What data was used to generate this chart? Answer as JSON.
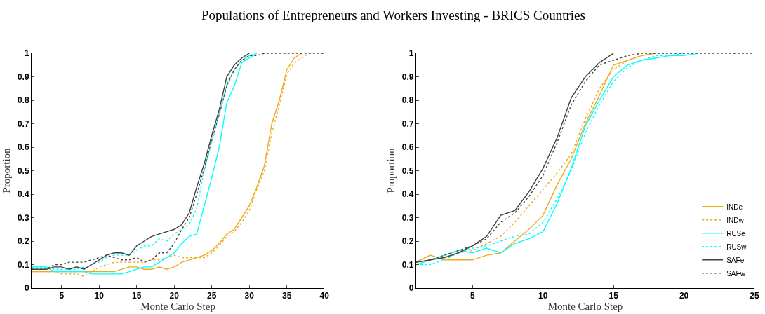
{
  "chart_data": [
    {
      "type": "line",
      "title": "Populations of Entrepreneurs and Workers Investing - BRICS Countries",
      "xlabel": "Monte Carlo Step",
      "ylabel": "Proportion",
      "x": [
        1,
        2,
        3,
        4,
        5,
        6,
        7,
        8,
        9,
        10,
        11,
        12,
        13,
        14,
        15,
        16,
        17,
        18,
        19,
        20,
        21,
        22,
        23,
        24,
        25,
        26,
        27,
        28,
        29,
        30,
        31,
        32,
        33,
        34,
        35,
        36,
        37,
        38,
        39,
        40
      ],
      "xlim": [
        1,
        40
      ],
      "xticks": [
        5,
        10,
        15,
        20,
        25,
        30,
        35,
        40
      ],
      "ylim": [
        0,
        1
      ],
      "yticks": [
        0,
        {
          "value": 0.1,
          "label": "0.1"
        },
        {
          "value": 0.2,
          "label": "0.2"
        },
        {
          "value": 0.3,
          "label": "0.3"
        },
        {
          "value": 0.4,
          "label": "0.4"
        },
        {
          "value": 0.5,
          "label": "0.5"
        },
        {
          "value": 0.6,
          "label": "0.6"
        },
        {
          "value": 0.7,
          "label": "0.7"
        },
        {
          "value": 0.8,
          "label": "0.8"
        },
        {
          "value": 0.9,
          "label": "0.9"
        },
        1
      ],
      "marker": "none",
      "legend": false,
      "series": [
        {
          "color": "#f0a81e",
          "line_style": "solid",
          "values": [
            0.07,
            0.07,
            0.07,
            0.07,
            0.07,
            0.07,
            0.07,
            0.07,
            0.07,
            0.07,
            0.07,
            0.07,
            0.08,
            0.09,
            0.09,
            0.08,
            0.08,
            0.09,
            0.08,
            0.09,
            0.11,
            0.12,
            0.13,
            0.14,
            0.16,
            0.19,
            0.23,
            0.25,
            0.3,
            0.35,
            0.43,
            0.52,
            0.7,
            0.8,
            0.93,
            0.98,
            1,
            null,
            null,
            null
          ]
        },
        {
          "color": "#f0a81e",
          "line_style": "dotted",
          "values": [
            0.07,
            0.07,
            0.07,
            0.07,
            0.06,
            0.06,
            0.06,
            0.05,
            0.07,
            0.09,
            0.1,
            0.11,
            0.11,
            0.11,
            0.11,
            0.11,
            0.12,
            0.12,
            0.13,
            0.14,
            0.13,
            0.13,
            0.13,
            0.13,
            0.15,
            0.18,
            0.22,
            0.24,
            0.28,
            0.33,
            0.42,
            0.5,
            0.66,
            0.78,
            0.91,
            0.96,
            0.98,
            1,
            null,
            null
          ]
        },
        {
          "color": "#00ffff",
          "line_style": "solid",
          "values": [
            0.09,
            0.09,
            0.09,
            0.07,
            0.07,
            0.07,
            0.07,
            0.07,
            0.06,
            0.06,
            0.06,
            0.06,
            0.06,
            0.07,
            0.08,
            0.09,
            0.09,
            0.11,
            0.13,
            0.15,
            0.19,
            0.22,
            0.23,
            0.35,
            0.47,
            0.6,
            0.79,
            0.86,
            0.96,
            0.98,
            1,
            null,
            null,
            null,
            null,
            null,
            null,
            null,
            null,
            null
          ]
        },
        {
          "color": "#00ffff",
          "line_style": "dotted",
          "values": [
            0.09,
            0.09,
            0.09,
            0.08,
            0.08,
            0.08,
            0.08,
            0.09,
            0.1,
            0.11,
            0.13,
            0.14,
            0.14,
            0.14,
            0.16,
            0.18,
            0.18,
            0.21,
            0.2,
            0.23,
            0.25,
            0.27,
            0.34,
            0.5,
            0.62,
            0.74,
            0.87,
            0.93,
            0.97,
            0.99,
            1,
            null,
            null,
            null,
            null,
            null,
            null,
            null,
            null,
            null
          ]
        },
        {
          "color": "#404040",
          "line_style": "solid",
          "values": [
            0.08,
            0.08,
            0.08,
            0.09,
            0.09,
            0.08,
            0.09,
            0.08,
            0.1,
            0.12,
            0.14,
            0.15,
            0.15,
            0.14,
            0.18,
            0.2,
            0.22,
            0.23,
            0.24,
            0.25,
            0.27,
            0.32,
            0.43,
            0.53,
            0.65,
            0.76,
            0.9,
            0.95,
            0.98,
            1,
            null,
            null,
            null,
            null,
            null,
            null,
            null,
            null,
            null,
            null
          ]
        },
        {
          "color": "#404040",
          "line_style": "dotted",
          "values": [
            0.08,
            0.08,
            0.08,
            0.1,
            0.1,
            0.11,
            0.11,
            0.11,
            0.12,
            0.13,
            0.14,
            0.13,
            0.12,
            0.12,
            0.13,
            0.11,
            0.12,
            0.15,
            0.15,
            0.19,
            0.25,
            0.3,
            0.4,
            0.51,
            0.63,
            0.74,
            0.86,
            0.93,
            0.97,
            0.99,
            0.99,
            1,
            1,
            1,
            1,
            1,
            1,
            1,
            1,
            1
          ]
        }
      ]
    },
    {
      "type": "line",
      "xlabel": "Monte Carlo Step",
      "ylabel": "Proportion",
      "x": [
        1,
        2,
        3,
        4,
        5,
        6,
        7,
        8,
        9,
        10,
        11,
        12,
        13,
        14,
        15,
        16,
        17,
        18,
        19,
        20,
        21,
        22,
        23,
        24,
        25
      ],
      "xlim": [
        1,
        25
      ],
      "xticks": [
        5,
        10,
        15,
        20,
        25
      ],
      "ylim": [
        0,
        1
      ],
      "yticks": [
        0,
        {
          "value": 0.1,
          "label": "0.1"
        },
        {
          "value": 0.2,
          "label": "0.2"
        },
        {
          "value": 0.3,
          "label": "0.3"
        },
        {
          "value": 0.4,
          "label": "0.4"
        },
        {
          "value": 0.5,
          "label": "0.5"
        },
        {
          "value": 0.6,
          "label": "0.6"
        },
        {
          "value": 0.7,
          "label": "0.7"
        },
        {
          "value": 0.8,
          "label": "0.8"
        },
        {
          "value": 0.9,
          "label": "0.9"
        },
        1
      ],
      "marker": "none",
      "legend": "bottom right",
      "series": [
        {
          "name": "INDe",
          "color": "#f0a81e",
          "line_style": "solid",
          "values": [
            0.11,
            0.14,
            0.12,
            0.12,
            0.12,
            0.14,
            0.15,
            0.2,
            0.25,
            0.31,
            0.44,
            0.55,
            0.7,
            0.82,
            0.95,
            0.97,
            0.99,
            1,
            null,
            null,
            null,
            null,
            null,
            null,
            null
          ]
        },
        {
          "name": "INDw",
          "color": "#f0a81e",
          "line_style": "dotted",
          "values": [
            0.11,
            0.12,
            0.13,
            0.15,
            0.16,
            0.19,
            0.22,
            0.28,
            0.35,
            0.42,
            0.49,
            0.57,
            0.72,
            0.85,
            0.93,
            0.97,
            0.99,
            1,
            null,
            null,
            null,
            null,
            null,
            null,
            null
          ]
        },
        {
          "name": "RUSe",
          "color": "#00ffff",
          "line_style": "solid",
          "values": [
            0.1,
            0.12,
            0.14,
            0.16,
            0.15,
            0.17,
            0.15,
            0.19,
            0.21,
            0.24,
            0.36,
            0.51,
            0.69,
            0.8,
            0.9,
            0.95,
            0.97,
            0.98,
            0.99,
            0.99,
            1,
            null,
            null,
            null,
            null
          ]
        },
        {
          "name": "RUSw",
          "color": "#00ffff",
          "line_style": "dotted",
          "values": [
            0.1,
            0.1,
            0.12,
            0.15,
            0.17,
            0.18,
            0.2,
            0.22,
            0.23,
            0.28,
            0.38,
            0.5,
            0.66,
            0.78,
            0.88,
            0.94,
            0.97,
            0.99,
            0.99,
            1,
            null,
            null,
            null,
            null,
            null
          ]
        },
        {
          "name": "SAFe",
          "color": "#404040",
          "line_style": "solid",
          "values": [
            0.11,
            0.12,
            0.13,
            0.15,
            0.18,
            0.22,
            0.31,
            0.33,
            0.41,
            0.51,
            0.64,
            0.81,
            0.9,
            0.96,
            1,
            null,
            null,
            null,
            null,
            null,
            null,
            null,
            null,
            null,
            null
          ]
        },
        {
          "name": "SAFw",
          "color": "#404040",
          "line_style": "dotted",
          "values": [
            0.11,
            0.12,
            0.14,
            0.16,
            0.18,
            0.21,
            0.28,
            0.32,
            0.39,
            0.48,
            0.62,
            0.78,
            0.88,
            0.95,
            0.97,
            0.99,
            1,
            1,
            1,
            1,
            1,
            1,
            1,
            1,
            1
          ]
        }
      ]
    }
  ]
}
